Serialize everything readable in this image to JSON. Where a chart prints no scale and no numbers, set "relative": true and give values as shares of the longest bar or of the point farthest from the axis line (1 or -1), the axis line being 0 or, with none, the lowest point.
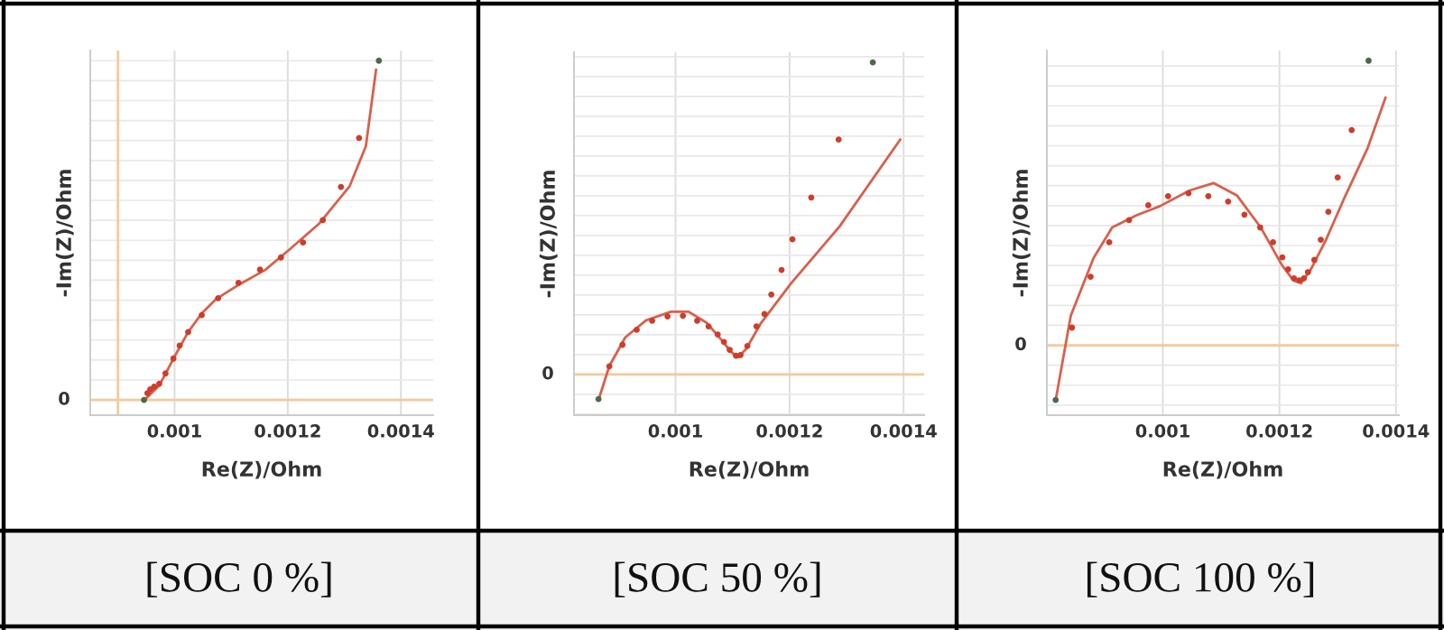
{
  "chart_data": [
    {
      "type": "scatter",
      "relative": true,
      "xlabel": "Re(Z)/Ohm",
      "ylabel": "-Im(Z)/Ohm",
      "annotations": [
        "[SOC 0 %]"
      ],
      "xlim": [
        0.000851,
        0.001457
      ],
      "xticks": [
        0.001,
        0.0012,
        0.0014
      ],
      "grid": true,
      "ref_lines": [
        {
          "axis": "y",
          "value": 0,
          "label": "0",
          "color": "#f5c99a"
        },
        {
          "axis": "x",
          "value": 0.0009,
          "color": "#f5c99a"
        }
      ],
      "series": [
        {
          "marker": "circle",
          "color": "#d03c2a",
          "colors": [
            "#4a6b4a",
            "#d03c2a",
            "#d03c2a",
            "#d03c2a",
            "#d03c2a",
            "#d03c2a",
            "#d03c2a",
            "#d03c2a",
            "#d03c2a",
            "#d03c2a",
            "#d03c2a",
            "#d03c2a",
            "#d03c2a",
            "#d03c2a",
            "#d03c2a",
            "#d03c2a",
            "#d03c2a",
            "#d03c2a",
            "#4a6b4a"
          ],
          "x": [
            0.000946,
            0.000952,
            0.000957,
            0.000964,
            0.000973,
            0.000984,
            0.000998,
            0.001009,
            0.001024,
            0.001048,
            0.001077,
            0.001113,
            0.001151,
            0.001188,
            0.001227,
            0.001262,
            0.001294,
            0.001326,
            0.001361
          ],
          "values": [
            0.0,
            0.02,
            0.031,
            0.039,
            0.048,
            0.078,
            0.122,
            0.16,
            0.2,
            0.25,
            0.3,
            0.345,
            0.384,
            0.42,
            0.464,
            0.53,
            0.628,
            0.772,
            1.0
          ]
        },
        {
          "type": "line",
          "marker": "none",
          "line_style": "solid",
          "color": "#d9604c",
          "x": [
            0.000947,
            0.000973,
            0.000984,
            0.001,
            0.001024,
            0.001048,
            0.001074,
            0.001117,
            0.00116,
            0.001202,
            0.001255,
            0.001309,
            0.001338,
            0.001356
          ],
          "values": [
            0.0,
            0.043,
            0.077,
            0.128,
            0.2,
            0.255,
            0.298,
            0.343,
            0.383,
            0.442,
            0.519,
            0.629,
            0.748,
            0.973
          ]
        }
      ]
    },
    {
      "type": "scatter",
      "relative": true,
      "xlabel": "Re(Z)/Ohm",
      "ylabel": "-Im(Z)/Ohm",
      "annotations": [
        "[SOC 50 %]"
      ],
      "xlim": [
        0.000822,
        0.001436
      ],
      "xticks": [
        0.001,
        0.0012,
        0.0014
      ],
      "grid": true,
      "ref_lines": [
        {
          "axis": "y",
          "value": 0,
          "label": "0",
          "color": "#f5c99a"
        }
      ],
      "series": [
        {
          "marker": "circle",
          "color": "#d03c2a",
          "colors": [
            "#4a6b4a",
            "#d03c2a",
            "#d03c2a",
            "#d03c2a",
            "#d03c2a",
            "#d03c2a",
            "#d03c2a",
            "#d03c2a",
            "#d03c2a",
            "#d03c2a",
            "#d03c2a",
            "#d03c2a",
            "#d03c2a",
            "#d03c2a",
            "#d03c2a",
            "#d03c2a",
            "#d03c2a",
            "#d03c2a",
            "#d03c2a",
            "#d03c2a",
            "#d03c2a",
            "#d03c2a",
            "#4a6b4a"
          ],
          "x": [
            0.000865,
            0.000884,
            0.000907,
            0.000932,
            0.000959,
            0.000986,
            0.001013,
            0.001038,
            0.001058,
            0.001074,
            0.001085,
            0.001095,
            0.001106,
            0.001114,
            0.001126,
            0.001142,
            0.001156,
            0.001168,
            0.001186,
            0.001205,
            0.001238,
            0.001286,
            0.001346
          ],
          "values": [
            -0.079,
            0.026,
            0.095,
            0.143,
            0.172,
            0.186,
            0.188,
            0.172,
            0.154,
            0.128,
            0.104,
            0.079,
            0.06,
            0.062,
            0.091,
            0.154,
            0.194,
            0.256,
            0.335,
            0.433,
            0.567,
            0.753,
            1.0
          ]
        },
        {
          "type": "line",
          "marker": "none",
          "line_style": "solid",
          "color": "#d9604c",
          "x": [
            0.000865,
            0.000884,
            0.000912,
            0.000949,
            0.000992,
            0.001023,
            0.001055,
            0.001081,
            0.001097,
            0.00111,
            0.001124,
            0.00115,
            0.001203,
            0.001288,
            0.001394
          ],
          "values": [
            -0.082,
            0.027,
            0.119,
            0.174,
            0.201,
            0.201,
            0.165,
            0.11,
            0.073,
            0.055,
            0.082,
            0.165,
            0.293,
            0.475,
            0.753
          ]
        }
      ]
    },
    {
      "type": "scatter",
      "relative": true,
      "xlabel": "Re(Z)/Ohm",
      "ylabel": "-Im(Z)/Ohm",
      "annotations": [
        "[SOC 100 %]"
      ],
      "xlim": [
        0.000801,
        0.001405
      ],
      "xticks": [
        0.001,
        0.0012,
        0.0014
      ],
      "grid": true,
      "ref_lines": [
        {
          "axis": "y",
          "value": 0,
          "label": "0",
          "color": "#f5c99a"
        }
      ],
      "series": [
        {
          "marker": "circle",
          "color": "#d03c2a",
          "colors": [
            "#4a6b4a",
            "#d03c2a",
            "#d03c2a",
            "#d03c2a",
            "#d03c2a",
            "#d03c2a",
            "#d03c2a",
            "#d03c2a",
            "#d03c2a",
            "#d03c2a",
            "#d03c2a",
            "#d03c2a",
            "#d03c2a",
            "#d03c2a",
            "#d03c2a",
            "#d03c2a",
            "#d03c2a",
            "#d03c2a",
            "#d03c2a",
            "#d03c2a",
            "#d03c2a",
            "#d03c2a",
            "#d03c2a",
            "#d03c2a",
            "#4a6b4a"
          ],
          "x": [
            0.000816,
            0.000844,
            0.000876,
            0.000908,
            0.000942,
            0.000975,
            0.001009,
            0.001044,
            0.001078,
            0.001112,
            0.00114,
            0.001167,
            0.001189,
            0.001205,
            0.001215,
            0.001225,
            0.001234,
            0.001242,
            0.001249,
            0.00126,
            0.001271,
            0.001284,
            0.0013,
            0.001324,
            0.001353
          ],
          "values": [
            -0.192,
            0.062,
            0.241,
            0.362,
            0.44,
            0.492,
            0.524,
            0.534,
            0.524,
            0.505,
            0.459,
            0.414,
            0.362,
            0.309,
            0.267,
            0.235,
            0.228,
            0.235,
            0.257,
            0.3,
            0.371,
            0.469,
            0.59,
            0.756,
            1.0
          ]
        },
        {
          "type": "line",
          "marker": "none",
          "line_style": "solid",
          "color": "#d9604c",
          "x": [
            0.000817,
            0.000842,
            0.000881,
            0.000913,
            0.000954,
            0.000995,
            0.001046,
            0.001087,
            0.001127,
            0.001168,
            0.001204,
            0.001224,
            0.001237,
            0.001254,
            0.00128,
            0.00131,
            0.001351,
            0.001382
          ],
          "values": [
            -0.182,
            0.104,
            0.306,
            0.414,
            0.456,
            0.489,
            0.544,
            0.57,
            0.527,
            0.414,
            0.283,
            0.228,
            0.218,
            0.267,
            0.371,
            0.511,
            0.691,
            0.87
          ]
        }
      ]
    }
  ]
}
